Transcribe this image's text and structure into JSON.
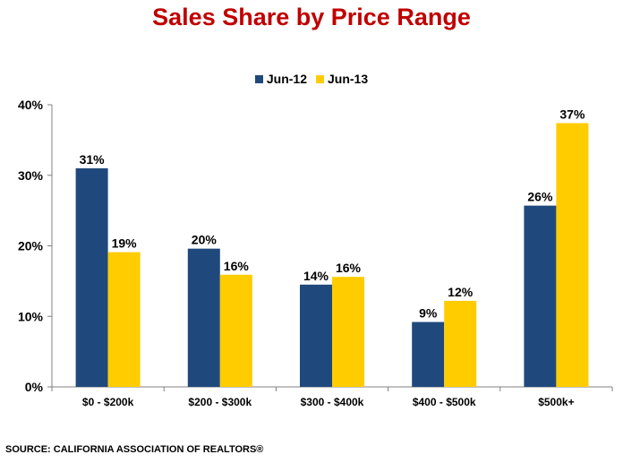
{
  "colors": {
    "title": "#c00000",
    "series1": "#1f497d",
    "series2": "#ffcc00"
  },
  "chart_data": {
    "type": "bar",
    "title": "Sales Share by Price Range",
    "categories": [
      "$0 - $200k",
      "$200 - $300k",
      "$300 - $400k",
      "$400 - $500k",
      "$500k+"
    ],
    "series": [
      {
        "name": "Jun-12",
        "values": [
          31,
          19.6,
          14.5,
          9.2,
          25.7
        ],
        "labels": [
          "31%",
          "20%",
          "14%",
          "9%",
          "26%"
        ]
      },
      {
        "name": "Jun-13",
        "values": [
          19.1,
          15.9,
          15.6,
          12.2,
          37.4
        ],
        "labels": [
          "19%",
          "16%",
          "16%",
          "12%",
          "37%"
        ]
      }
    ],
    "ylim": [
      0,
      40
    ],
    "yticks": [
      0,
      10,
      20,
      30,
      40
    ],
    "ytick_labels": [
      "0%",
      "10%",
      "20%",
      "30%",
      "40%"
    ],
    "grid": false,
    "legend": "top-center"
  },
  "source": "SOURCE: CALIFORNIA ASSOCIATION  OF REALTORS®"
}
